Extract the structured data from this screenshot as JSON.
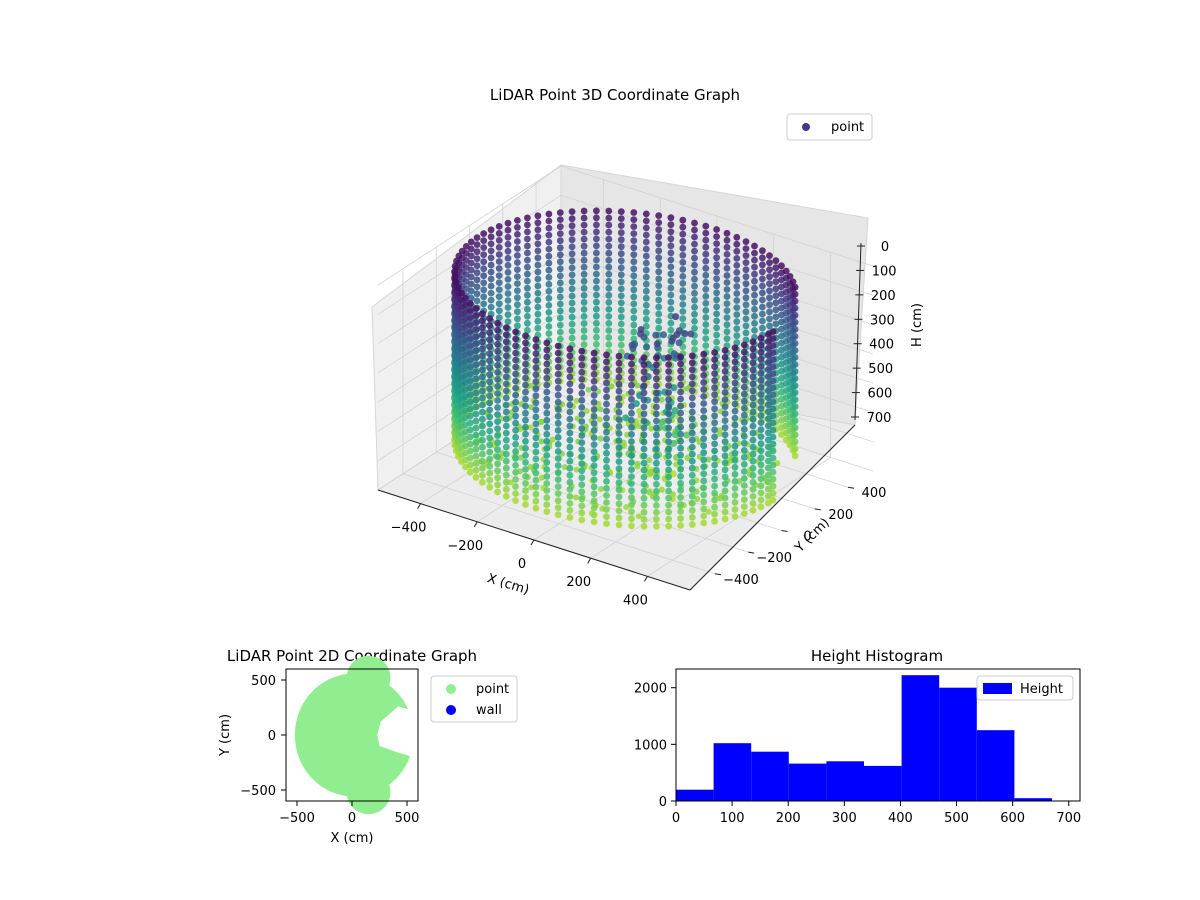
{
  "chart_data": [
    {
      "type": "scatter",
      "title": "LiDAR Point 3D Coordinate Graph",
      "xlabel": "X (cm)",
      "ylabel": "Y (cm)",
      "zlabel": "H (cm)",
      "xlim": [
        -550,
        550
      ],
      "ylim": [
        -550,
        550
      ],
      "zlim": [
        0,
        700
      ],
      "z_inverted": true,
      "x_ticks": [
        -400,
        -200,
        0,
        200,
        400
      ],
      "y_ticks": [
        -400,
        -200,
        0,
        200,
        400
      ],
      "z_ticks": [
        0,
        100,
        200,
        300,
        400,
        500,
        600,
        700
      ],
      "x_tick_labels": [
        "−400",
        "−200",
        "0",
        "200",
        "400"
      ],
      "y_tick_labels": [
        "−400",
        "−200",
        "0",
        "200",
        "400"
      ],
      "z_tick_labels": [
        "0",
        "100",
        "200",
        "300",
        "400",
        "500",
        "600",
        "700"
      ],
      "colormap": "viridis",
      "shape": "cylinder",
      "radius_cm": 520,
      "legend": {
        "label": "point",
        "placement": "top-right",
        "color": "#443983"
      },
      "grid": true
    },
    {
      "type": "scatter",
      "title": "LiDAR Point 2D Coordinate Graph",
      "xlabel": "X (cm)",
      "ylabel": "Y (cm)",
      "xlim": [
        -600,
        600
      ],
      "ylim": [
        -600,
        600
      ],
      "x_ticks": [
        -500,
        0,
        500
      ],
      "y_ticks": [
        -500,
        0,
        500
      ],
      "x_tick_labels": [
        "−500",
        "0",
        "500"
      ],
      "y_tick_labels": [
        "−500",
        "0",
        "500"
      ],
      "series": [
        {
          "name": "point",
          "color": "#90ee90"
        },
        {
          "name": "wall",
          "color": "#0000ff"
        }
      ],
      "legend_placement": "outside-right"
    },
    {
      "type": "bar",
      "title": "Height Histogram",
      "bin_edges": [
        0,
        67,
        134,
        201,
        268,
        335,
        402,
        469,
        536,
        603,
        670
      ],
      "values": [
        200,
        1020,
        870,
        660,
        700,
        620,
        2220,
        2000,
        1250,
        50
      ],
      "xlim": [
        0,
        720
      ],
      "ylim": [
        0,
        2330
      ],
      "x_ticks": [
        0,
        100,
        200,
        300,
        400,
        500,
        600,
        700
      ],
      "y_ticks": [
        0,
        1000,
        2000
      ],
      "bar_color": "#0000ff",
      "legend": {
        "label": "Height",
        "placement": "top-right"
      }
    }
  ]
}
